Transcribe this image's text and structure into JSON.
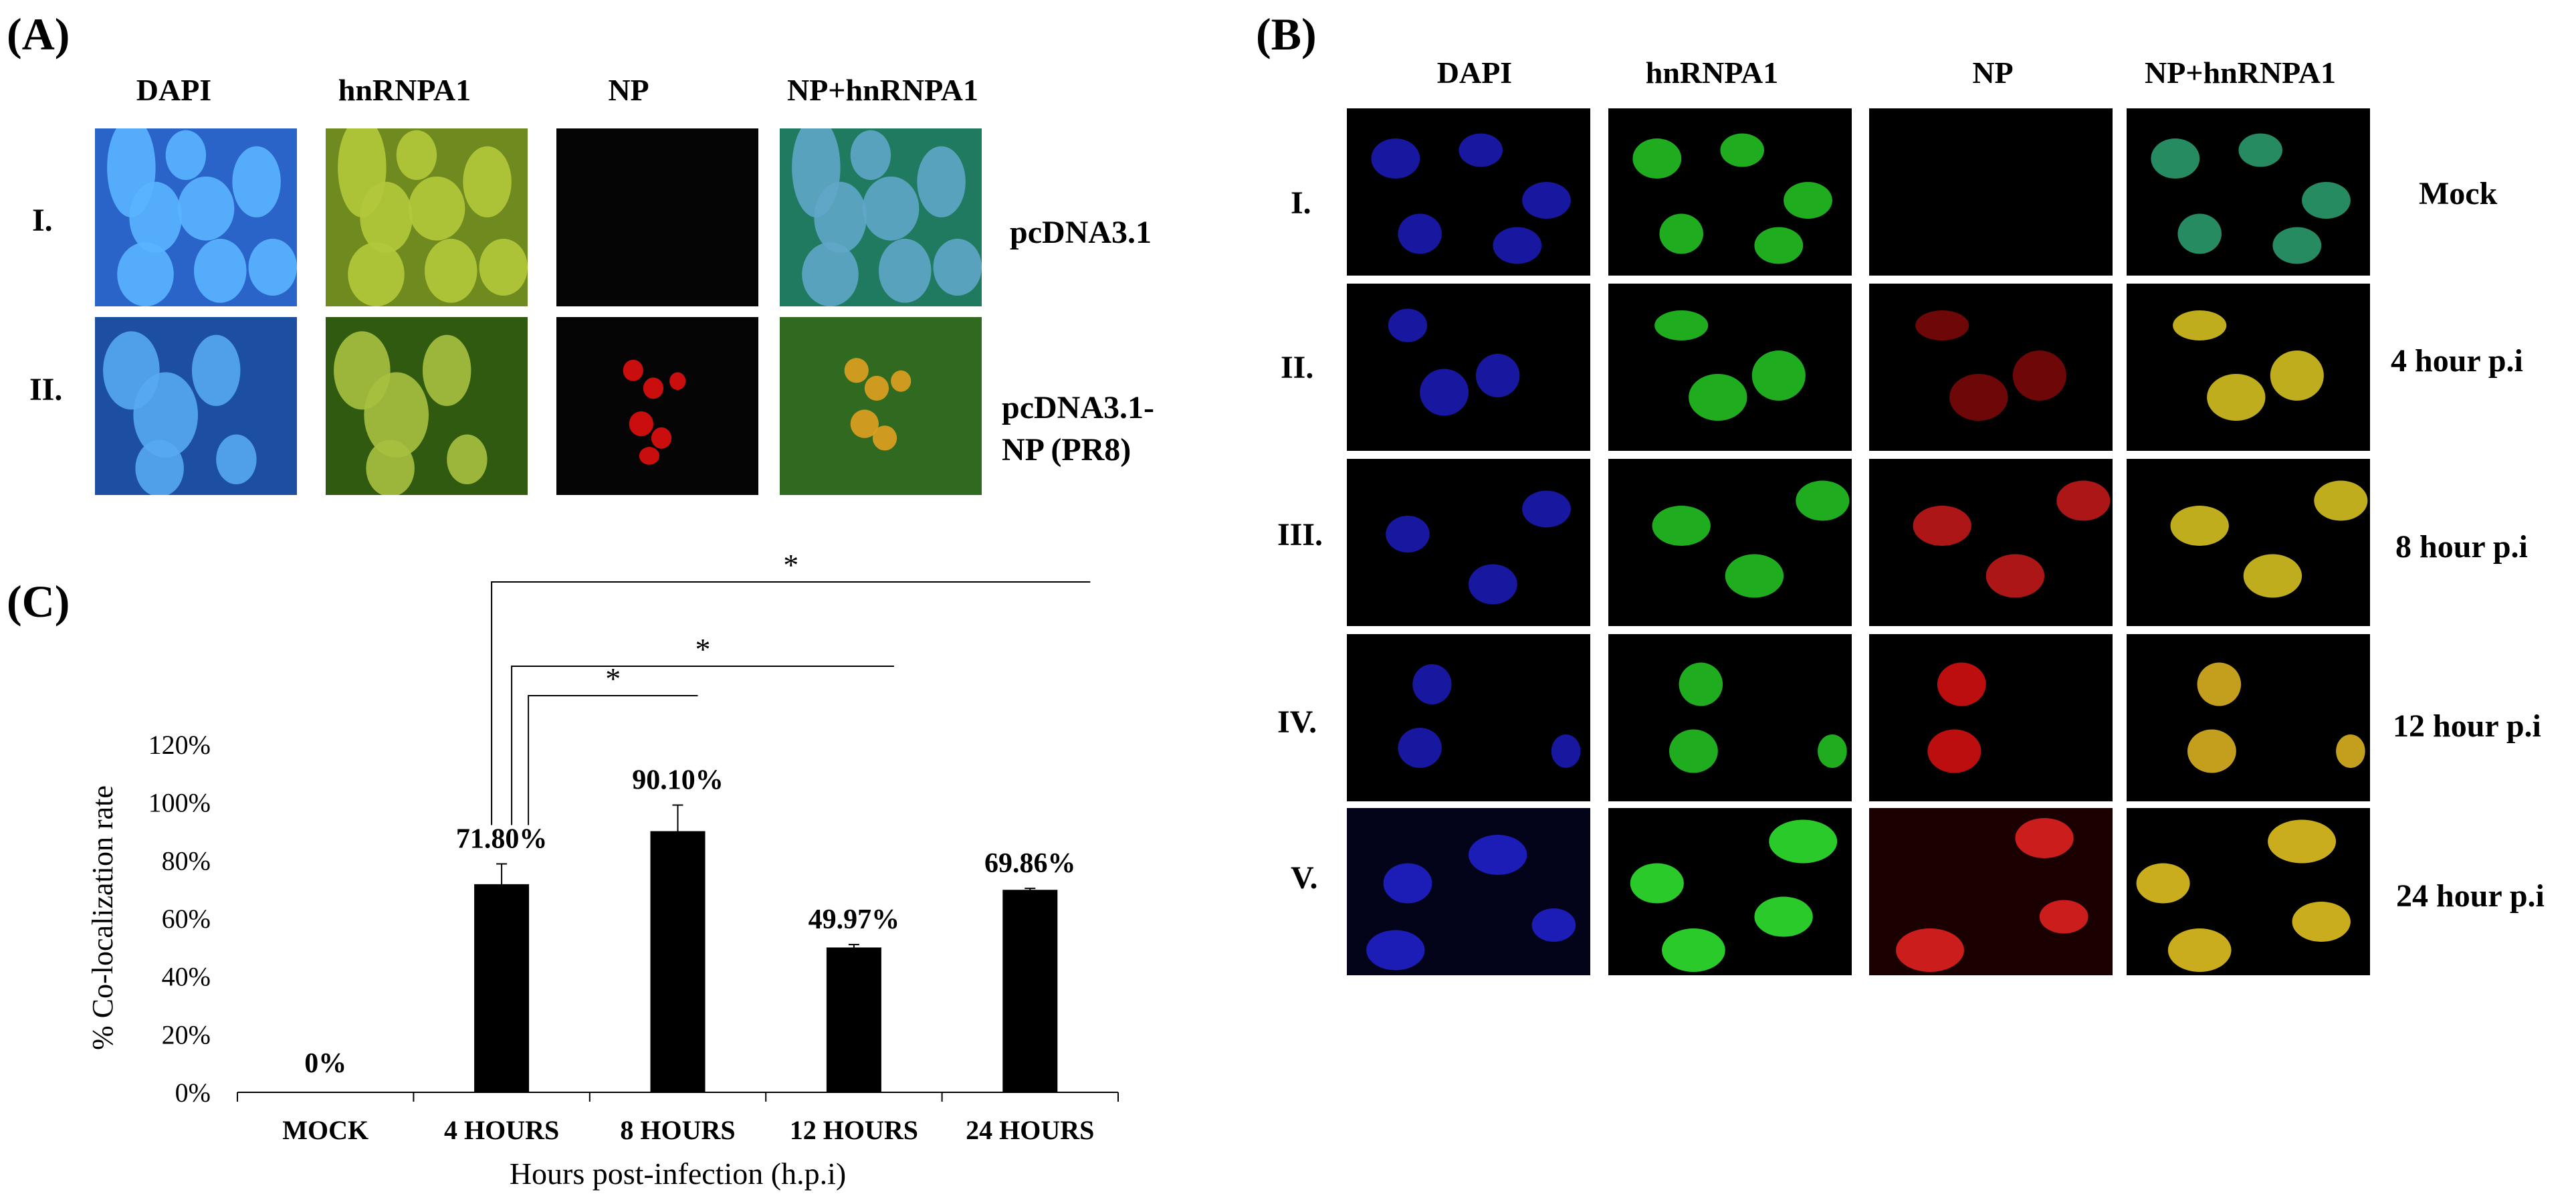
{
  "panels": {
    "A": {
      "letter": "(A)",
      "columns": [
        "DAPI",
        "hnRNPA1",
        "NP",
        "NP+hnRNPA1"
      ],
      "rows": [
        {
          "label": "I.",
          "condition": "pcDNA3.1"
        },
        {
          "label": "II.",
          "condition_lines": [
            "pcDNA3.1-",
            "NP (PR8)"
          ]
        }
      ]
    },
    "B": {
      "letter": "(B)",
      "columns": [
        "DAPI",
        "hnRNPA1",
        "NP",
        "NP+hnRNPA1"
      ],
      "rows": [
        {
          "label": "I.",
          "condition": "Mock"
        },
        {
          "label": "II.",
          "condition": "4 hour p.i"
        },
        {
          "label": "III.",
          "condition": "8 hour p.i"
        },
        {
          "label": "IV.",
          "condition": "12 hour p.i"
        },
        {
          "label": "V.",
          "condition": "24 hour p.i"
        }
      ]
    },
    "C": {
      "letter": "(C)"
    }
  },
  "colors": {
    "dapi": "#1a3cff",
    "hnrnpa1": "#22c022",
    "np": "#e01010",
    "merge": "#d4c020",
    "bar": "#000000"
  },
  "chart_data": {
    "type": "bar",
    "categories": [
      "MOCK",
      "4 HOURS",
      "8 HOURS",
      "12 HOURS",
      "24 HOURS"
    ],
    "values": [
      0,
      71.8,
      90.1,
      49.97,
      69.86
    ],
    "errors": [
      0,
      7,
      9,
      1,
      0.5
    ],
    "value_labels": [
      "0%",
      "71.80%",
      "90.10%",
      "49.97%",
      "69.86%"
    ],
    "ylabel": "% Co-localization rate",
    "xlabel": "Hours post-infection (h.p.i)",
    "ylim": [
      0,
      120
    ],
    "yticks": [
      0,
      20,
      40,
      60,
      80,
      100,
      120
    ],
    "ytick_labels": [
      "0%",
      "20%",
      "40%",
      "60%",
      "80%",
      "100%",
      "120%"
    ],
    "significance": [
      {
        "from": "4 HOURS",
        "to": "8 HOURS",
        "label": "*"
      },
      {
        "from": "4 HOURS",
        "to": "12 HOURS",
        "label": "*"
      },
      {
        "from": "4 HOURS",
        "to": "24 HOURS",
        "label": "*"
      }
    ],
    "grid": false
  }
}
